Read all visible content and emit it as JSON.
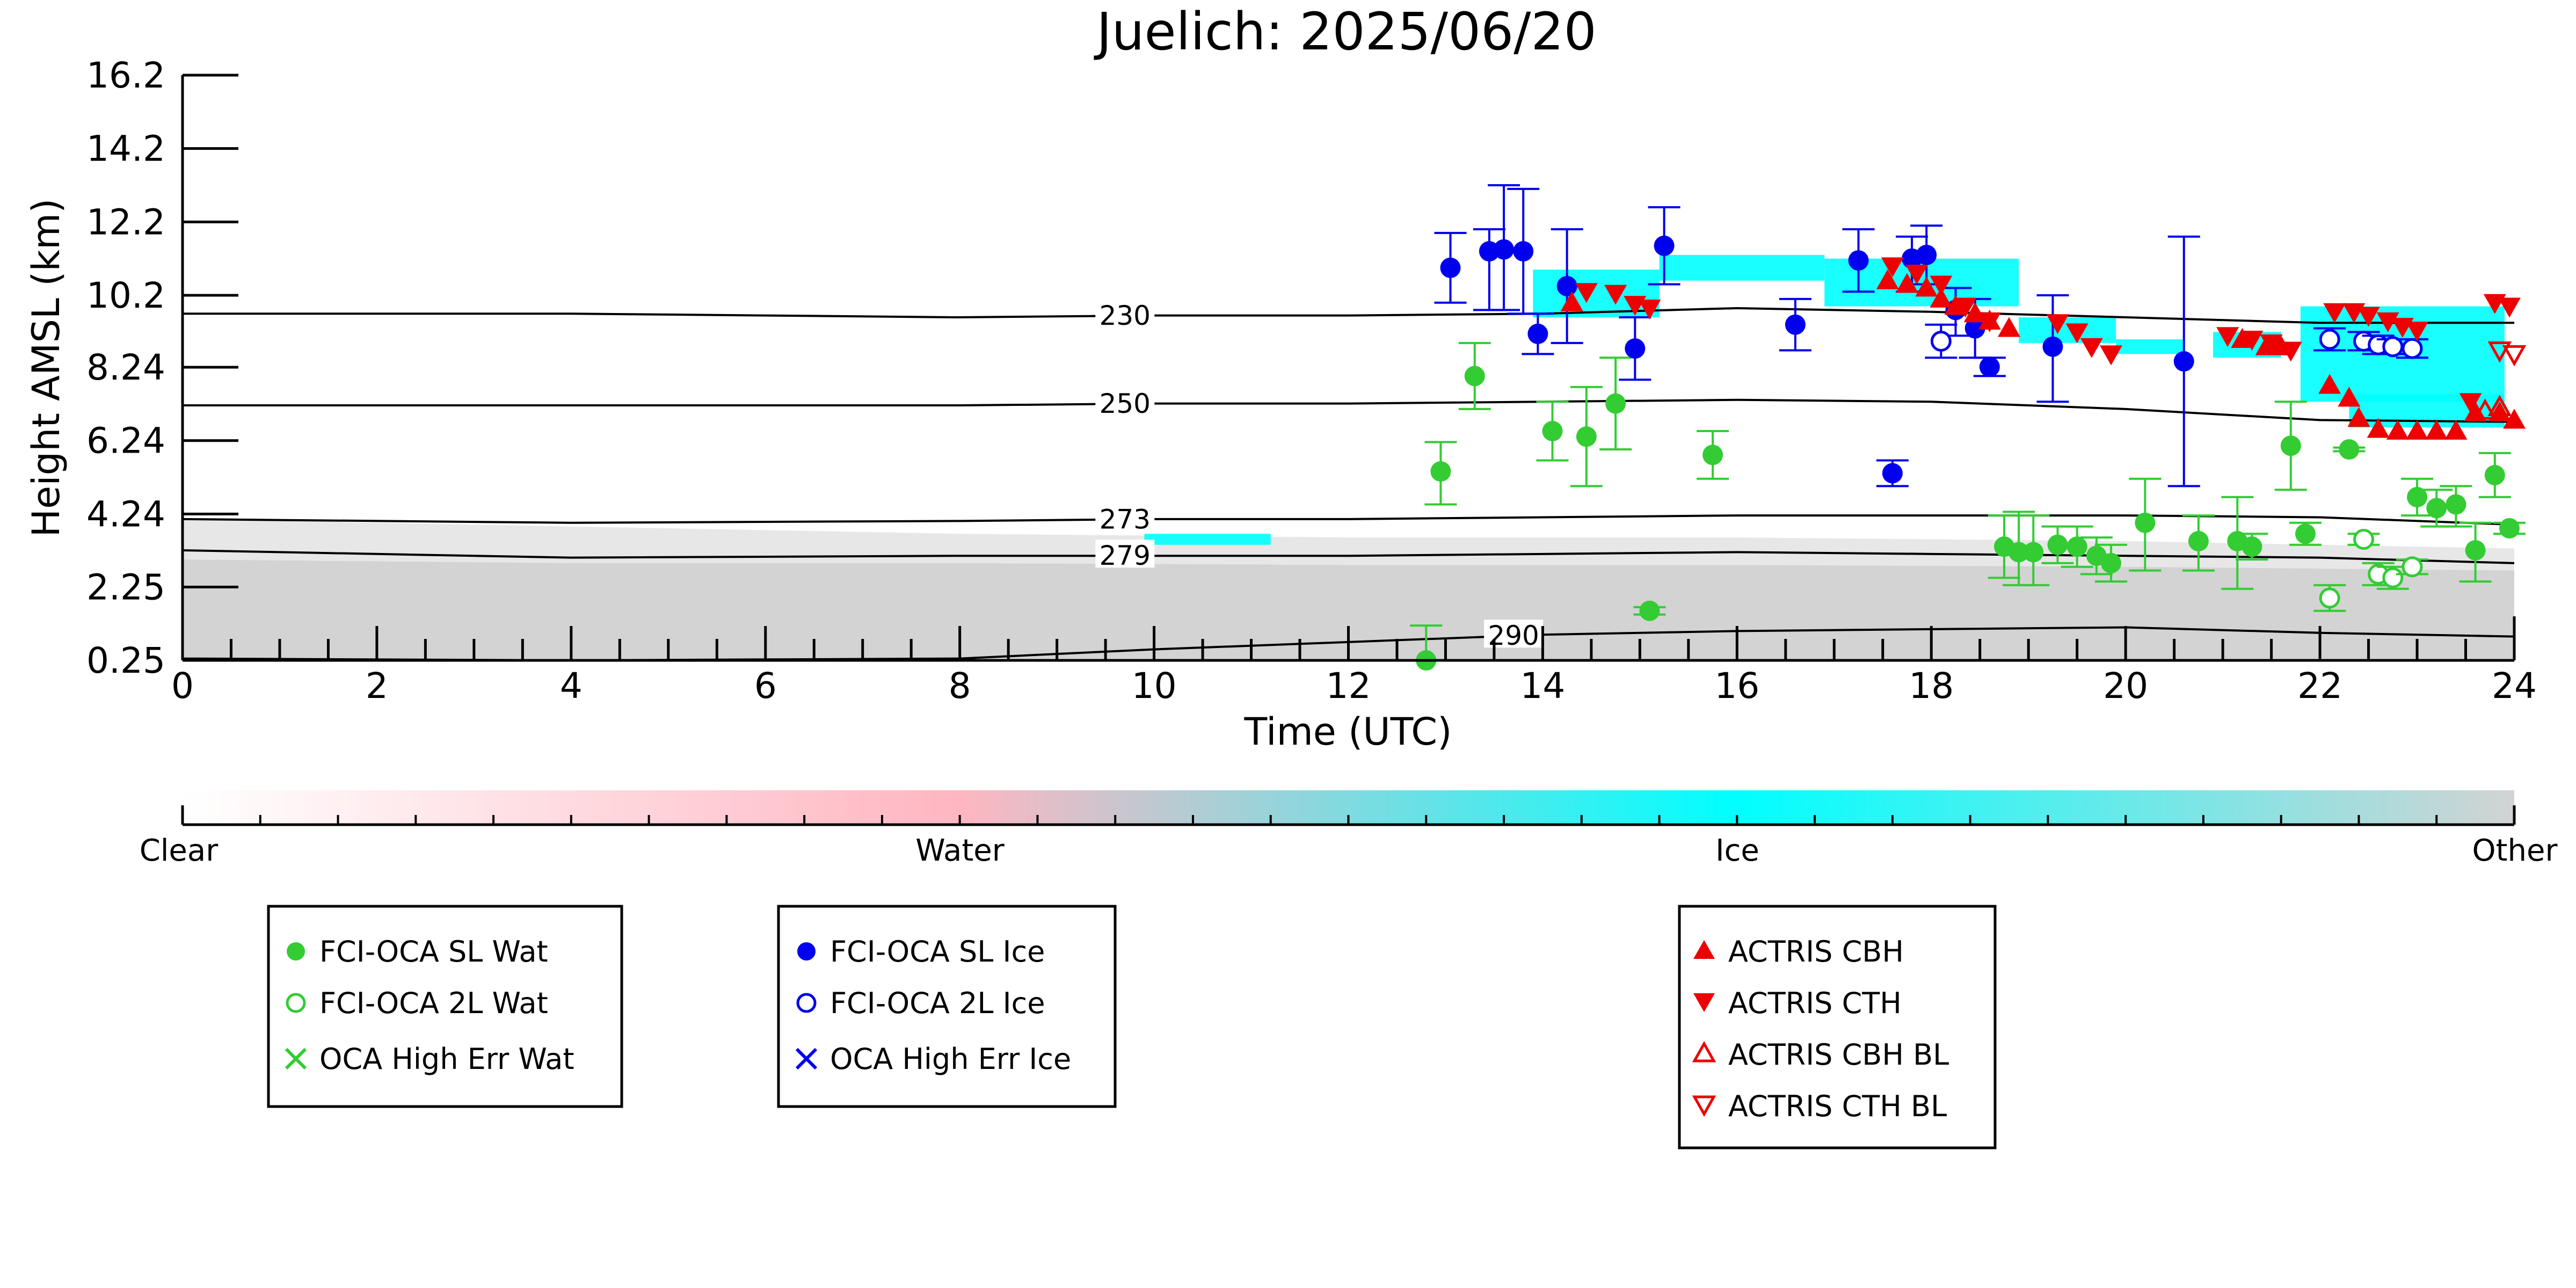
{
  "chart_data": {
    "type": "scatter",
    "title": "Juelich: 2025/06/20",
    "xlabel": "Time (UTC)",
    "ylabel": "Height AMSL (km)",
    "xlim": [
      0,
      24
    ],
    "ylim": [
      0.25,
      16.2
    ],
    "x_ticks": [
      "0",
      "2",
      "4",
      "6",
      "8",
      "10",
      "12",
      "14",
      "16",
      "18",
      "20",
      "22",
      "24"
    ],
    "y_ticks": [
      "0.25",
      "2.25",
      "4.24",
      "6.24",
      "8.24",
      "10.2",
      "12.2",
      "14.2",
      "16.2"
    ],
    "y_tick_values": [
      0.25,
      2.25,
      4.24,
      6.24,
      8.24,
      10.2,
      12.2,
      14.2,
      16.2
    ],
    "isotherms": [
      {
        "label": "230",
        "label_x": 9.7,
        "points": [
          [
            0,
            9.7
          ],
          [
            4,
            9.7
          ],
          [
            8,
            9.6
          ],
          [
            10,
            9.65
          ],
          [
            12,
            9.65
          ],
          [
            14,
            9.7
          ],
          [
            16,
            9.85
          ],
          [
            18,
            9.75
          ],
          [
            20,
            9.6
          ],
          [
            22,
            9.45
          ],
          [
            24,
            9.45
          ]
        ]
      },
      {
        "label": "250",
        "label_x": 9.7,
        "points": [
          [
            0,
            7.2
          ],
          [
            4,
            7.2
          ],
          [
            8,
            7.2
          ],
          [
            10,
            7.25
          ],
          [
            12,
            7.25
          ],
          [
            14,
            7.3
          ],
          [
            16,
            7.35
          ],
          [
            18,
            7.3
          ],
          [
            20,
            7.1
          ],
          [
            22,
            6.8
          ],
          [
            24,
            6.75
          ]
        ]
      },
      {
        "label": "273",
        "label_x": 9.7,
        "points": [
          [
            0,
            4.1
          ],
          [
            4,
            4.0
          ],
          [
            8,
            4.05
          ],
          [
            10,
            4.1
          ],
          [
            12,
            4.1
          ],
          [
            14,
            4.15
          ],
          [
            16,
            4.2
          ],
          [
            18,
            4.2
          ],
          [
            20,
            4.2
          ],
          [
            22,
            4.15
          ],
          [
            24,
            3.95
          ]
        ]
      },
      {
        "label": "279",
        "label_x": 9.7,
        "points": [
          [
            0,
            3.25
          ],
          [
            4,
            3.05
          ],
          [
            8,
            3.1
          ],
          [
            10,
            3.1
          ],
          [
            12,
            3.1
          ],
          [
            14,
            3.15
          ],
          [
            16,
            3.2
          ],
          [
            18,
            3.15
          ],
          [
            20,
            3.1
          ],
          [
            22,
            3.05
          ],
          [
            24,
            2.9
          ]
        ]
      },
      {
        "label": "290",
        "label_x": 13.7,
        "points": [
          [
            0,
            0.3
          ],
          [
            4,
            0.0
          ],
          [
            8,
            0.3
          ],
          [
            10,
            0.55
          ],
          [
            12,
            0.75
          ],
          [
            14,
            0.95
          ],
          [
            16,
            1.05
          ],
          [
            18,
            1.1
          ],
          [
            20,
            1.15
          ],
          [
            22,
            1.0
          ],
          [
            24,
            0.9
          ]
        ]
      }
    ],
    "series": [
      {
        "name": "FCI-OCA SL Wat",
        "color": "#33cc33",
        "marker": "filled-circle",
        "points": [
          [
            12.95,
            5.4,
            4.5,
            6.2
          ],
          [
            13.3,
            8.0,
            7.1,
            8.9
          ],
          [
            14.1,
            6.5,
            5.7,
            7.3
          ],
          [
            14.45,
            6.35,
            5.0,
            7.7
          ],
          [
            14.75,
            7.25,
            6.0,
            8.5
          ],
          [
            15.1,
            1.6,
            1.5,
            1.7
          ],
          [
            15.75,
            5.85,
            5.2,
            6.5
          ],
          [
            12.8,
            0.25,
            0.0,
            1.2
          ],
          [
            18.75,
            3.35,
            2.5,
            4.2
          ],
          [
            18.9,
            3.2,
            2.3,
            4.3
          ],
          [
            19.05,
            3.2,
            2.3,
            4.2
          ],
          [
            19.3,
            3.4,
            2.9,
            3.9
          ],
          [
            19.5,
            3.35,
            2.8,
            3.9
          ],
          [
            19.7,
            3.1,
            2.6,
            3.6
          ],
          [
            19.85,
            2.9,
            2.4,
            3.4
          ],
          [
            20.2,
            4.0,
            2.7,
            5.2
          ],
          [
            20.75,
            3.5,
            2.7,
            4.2
          ],
          [
            21.15,
            3.5,
            2.2,
            4.7
          ],
          [
            21.3,
            3.35,
            3.0,
            3.7
          ],
          [
            21.7,
            6.1,
            4.9,
            7.3
          ],
          [
            21.85,
            3.7,
            3.4,
            4.0
          ],
          [
            22.3,
            6.0,
            5.95,
            6.05
          ],
          [
            23.0,
            4.7,
            4.2,
            5.2
          ],
          [
            23.2,
            4.4,
            3.9,
            4.9
          ],
          [
            23.4,
            4.5,
            3.9,
            5.0
          ],
          [
            23.6,
            3.25,
            2.4,
            4.0
          ],
          [
            23.8,
            5.3,
            4.7,
            5.9
          ],
          [
            23.95,
            3.85,
            3.7,
            4.0
          ]
        ]
      },
      {
        "name": "FCI-OCA 2L Wat",
        "color": "#33cc33",
        "marker": "open-circle",
        "points": [
          [
            22.1,
            1.95,
            1.6,
            2.3
          ],
          [
            22.45,
            3.55,
            3.4,
            3.7
          ],
          [
            22.6,
            2.6,
            2.3,
            2.9
          ],
          [
            22.75,
            2.5,
            2.2,
            2.8
          ],
          [
            22.95,
            2.8,
            2.6,
            3.0
          ]
        ]
      },
      {
        "name": "OCA High Err Wat",
        "color": "#33cc33",
        "marker": "cross",
        "points": []
      },
      {
        "name": "FCI-OCA SL Ice",
        "color": "#0000ee",
        "marker": "filled-circle",
        "points": [
          [
            13.05,
            10.95,
            10.0,
            11.9
          ],
          [
            13.45,
            11.4,
            9.8,
            12.0
          ],
          [
            13.6,
            11.45,
            9.8,
            13.2
          ],
          [
            13.8,
            11.4,
            9.7,
            13.1
          ],
          [
            13.95,
            9.15,
            8.6,
            9.7
          ],
          [
            14.25,
            10.45,
            8.9,
            12.0
          ],
          [
            14.95,
            8.75,
            7.9,
            9.6
          ],
          [
            15.25,
            11.55,
            10.5,
            12.6
          ],
          [
            16.6,
            9.4,
            8.7,
            10.1
          ],
          [
            17.25,
            11.15,
            10.3,
            12.0
          ],
          [
            17.6,
            5.35,
            5.0,
            5.7
          ],
          [
            17.8,
            11.2,
            10.3,
            11.8
          ],
          [
            17.95,
            11.3,
            10.5,
            12.1
          ],
          [
            18.25,
            9.8,
            9.1,
            10.4
          ],
          [
            18.45,
            9.3,
            8.5,
            10.1
          ],
          [
            18.6,
            8.25,
            8.0,
            8.5
          ],
          [
            19.25,
            8.8,
            7.3,
            10.2
          ],
          [
            20.6,
            8.4,
            5.0,
            11.8
          ]
        ]
      },
      {
        "name": "FCI-OCA 2L Ice",
        "color": "#0000ee",
        "marker": "open-circle",
        "points": [
          [
            18.1,
            8.95,
            8.5,
            9.4
          ],
          [
            22.1,
            9.0,
            8.7,
            9.3
          ],
          [
            22.45,
            8.95,
            8.7,
            9.2
          ],
          [
            22.6,
            8.85,
            8.6,
            9.1
          ],
          [
            22.75,
            8.8,
            8.6,
            9.0
          ],
          [
            22.95,
            8.75,
            8.5,
            9.0
          ]
        ]
      },
      {
        "name": "OCA High Err Ice",
        "color": "#0000ee",
        "marker": "cross",
        "points": []
      },
      {
        "name": "ACTRIS CBH",
        "color": "#ee0000",
        "marker": "filled-triangle-up",
        "points": [
          [
            14.3,
            10.0
          ],
          [
            17.55,
            10.6
          ],
          [
            17.75,
            10.5
          ],
          [
            17.95,
            10.4
          ],
          [
            18.1,
            10.1
          ],
          [
            18.25,
            9.9
          ],
          [
            18.45,
            9.7
          ],
          [
            18.6,
            9.5
          ],
          [
            18.8,
            9.3
          ],
          [
            21.2,
            9.0
          ],
          [
            21.45,
            8.8
          ],
          [
            21.6,
            8.8
          ],
          [
            22.1,
            7.75
          ],
          [
            22.3,
            7.4
          ],
          [
            22.4,
            6.85
          ],
          [
            22.6,
            6.55
          ],
          [
            22.8,
            6.5
          ],
          [
            23.0,
            6.5
          ],
          [
            23.2,
            6.5
          ],
          [
            23.4,
            6.5
          ],
          [
            23.6,
            7.0
          ],
          [
            23.85,
            7.0
          ],
          [
            24.0,
            6.8
          ]
        ]
      },
      {
        "name": "ACTRIS CTH",
        "color": "#ee0000",
        "marker": "filled-triangle-down",
        "points": [
          [
            14.45,
            10.3
          ],
          [
            14.75,
            10.25
          ],
          [
            14.95,
            9.95
          ],
          [
            15.1,
            9.85
          ],
          [
            17.6,
            11.0
          ],
          [
            17.85,
            10.8
          ],
          [
            18.1,
            10.5
          ],
          [
            18.35,
            9.9
          ],
          [
            18.6,
            9.5
          ],
          [
            19.3,
            9.45
          ],
          [
            19.5,
            9.2
          ],
          [
            19.65,
            8.8
          ],
          [
            19.85,
            8.6
          ],
          [
            21.05,
            9.1
          ],
          [
            21.3,
            9.0
          ],
          [
            21.5,
            8.9
          ],
          [
            21.7,
            8.7
          ],
          [
            22.15,
            9.75
          ],
          [
            22.35,
            9.75
          ],
          [
            22.5,
            9.65
          ],
          [
            22.7,
            9.5
          ],
          [
            22.85,
            9.35
          ],
          [
            23.0,
            9.25
          ],
          [
            23.55,
            7.3
          ],
          [
            23.8,
            10.0
          ],
          [
            23.95,
            9.9
          ]
        ]
      },
      {
        "name": "ACTRIS CBH BL",
        "color": "#ee0000",
        "marker": "open-triangle-up",
        "points": [
          [
            23.7,
            7.05
          ],
          [
            23.85,
            7.15
          ]
        ]
      },
      {
        "name": "ACTRIS CTH BL",
        "color": "#ee0000",
        "marker": "open-triangle-down",
        "points": [
          [
            23.85,
            8.7
          ],
          [
            24.0,
            8.6
          ]
        ]
      }
    ],
    "colorbar": {
      "labels": [
        "Clear",
        "Water",
        "Ice",
        "Other"
      ],
      "colors": [
        "#ffffff",
        "#ffb6c1",
        "#00ffff",
        "#d3d3d3"
      ]
    },
    "cloud_phase_colors": {
      "ice": "#00ffff",
      "other": "#d3d3d3"
    },
    "legend_groups": [
      [
        "FCI-OCA SL Wat",
        "FCI-OCA 2L Wat",
        "OCA High Err Wat"
      ],
      [
        "FCI-OCA SL Ice",
        "FCI-OCA 2L Ice",
        "OCA High Err Ice"
      ],
      [
        "ACTRIS CBH",
        "ACTRIS CTH",
        "ACTRIS CBH BL",
        "ACTRIS CTH BL"
      ]
    ],
    "grid": false,
    "legend_placement": "below"
  }
}
